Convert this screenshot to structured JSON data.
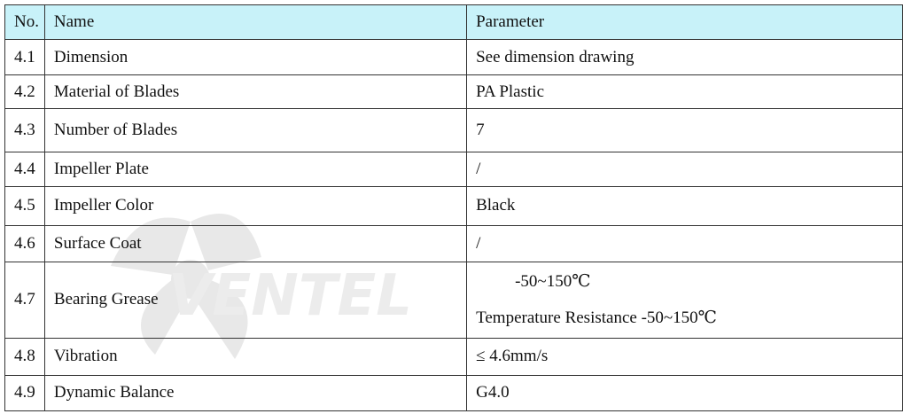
{
  "table": {
    "headers": {
      "no": "No.",
      "name": "Name",
      "parameter": "Parameter"
    },
    "rows": [
      {
        "no": "4.1",
        "name": "Dimension",
        "parameter": "See dimension drawing"
      },
      {
        "no": "4.2",
        "name": "Material of Blades",
        "parameter": "PA Plastic"
      },
      {
        "no": "4.3",
        "name": "Number of Blades",
        "parameter": "7"
      },
      {
        "no": "4.4",
        "name": "Impeller Plate",
        "parameter": "/"
      },
      {
        "no": "4.5",
        "name": "Impeller Color",
        "parameter": "Black"
      },
      {
        "no": "4.6",
        "name": "Surface Coat",
        "parameter": "/"
      },
      {
        "no": "4.7",
        "name": "Bearing Grease",
        "parameter_line1": "-50~150℃",
        "parameter_line2": "Temperature Resistance -50~150℃"
      },
      {
        "no": "4.8",
        "name": "Vibration",
        "parameter": "≤ 4.6mm/s"
      },
      {
        "no": "4.9",
        "name": "Dynamic Balance",
        "parameter": "G4.0"
      }
    ]
  },
  "watermark": {
    "text": "VENTEL"
  },
  "colors": {
    "header_bg": "#c8f2f9",
    "border": "#333333",
    "watermark": "#e6e6e6",
    "watermark_accent": "#d9ecf7"
  }
}
